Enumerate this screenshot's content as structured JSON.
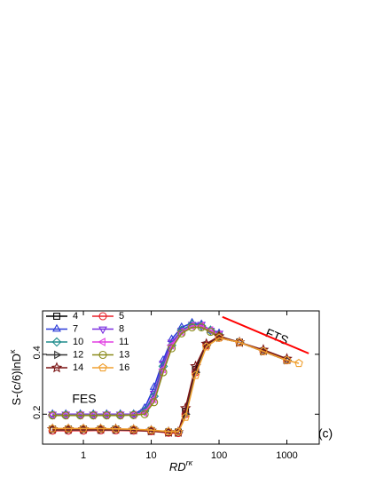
{
  "chart_data": {
    "type": "line",
    "xscale": "log",
    "xlim": [
      0.25,
      3000
    ],
    "ylim": [
      0.1,
      0.545
    ],
    "xticks": [
      1,
      10,
      100,
      1000
    ],
    "yticks": [
      0.2,
      0.4
    ],
    "xlabel": "RD",
    "xlabel_sup": "rκ",
    "ylabel": "S-(c/6)lnD",
    "ylabel_sup": "κ",
    "annotations": [
      "FES",
      "FTS",
      "(c)"
    ],
    "fts_line": {
      "color": "#ff0000",
      "x": [
        112,
        2100
      ],
      "values": [
        0.525,
        0.403
      ]
    },
    "legend": "top-left",
    "series": [
      {
        "name": "4",
        "color": "#000000",
        "marker": "square",
        "x": [
          0.35,
          0.6,
          1,
          1.8,
          3,
          5.5,
          10,
          18,
          25,
          32,
          45,
          65,
          100,
          200,
          450,
          1000
        ],
        "values": [
          0.15,
          0.15,
          0.15,
          0.15,
          0.15,
          0.148,
          0.145,
          0.14,
          0.14,
          0.21,
          0.35,
          0.43,
          0.46,
          0.44,
          0.41,
          0.38
        ]
      },
      {
        "name": "5",
        "color": "#e8202a",
        "marker": "circle",
        "x": [
          0.35,
          0.6,
          1,
          1.8,
          3,
          5.5,
          10,
          18,
          25,
          32,
          45,
          65,
          100,
          200,
          450,
          1000
        ],
        "values": [
          0.145,
          0.145,
          0.145,
          0.146,
          0.146,
          0.145,
          0.143,
          0.138,
          0.137,
          0.2,
          0.34,
          0.43,
          0.455,
          0.44,
          0.41,
          0.38
        ]
      },
      {
        "name": "7",
        "color": "#2a3ad8",
        "marker": "triangle-up",
        "x": [
          0.35,
          0.55,
          0.9,
          1.4,
          2.2,
          3.5,
          5.5,
          8,
          11,
          15,
          20,
          28,
          40,
          55,
          75,
          100
        ],
        "values": [
          0.2,
          0.2,
          0.2,
          0.2,
          0.2,
          0.2,
          0.2,
          0.22,
          0.29,
          0.38,
          0.45,
          0.49,
          0.505,
          0.5,
          0.48,
          0.47
        ]
      },
      {
        "name": "8",
        "color": "#7a2ee0",
        "marker": "triangle-down",
        "x": [
          0.35,
          0.55,
          0.9,
          1.4,
          2.2,
          3.5,
          5.5,
          8,
          11,
          15,
          20,
          28,
          40,
          55,
          75,
          100
        ],
        "values": [
          0.2,
          0.2,
          0.2,
          0.2,
          0.2,
          0.2,
          0.2,
          0.21,
          0.27,
          0.37,
          0.44,
          0.48,
          0.5,
          0.5,
          0.48,
          0.47
        ]
      },
      {
        "name": "10",
        "color": "#1f8c8c",
        "marker": "diamond",
        "x": [
          0.35,
          0.55,
          0.9,
          1.4,
          2.2,
          3.5,
          5.5,
          8,
          11,
          15,
          20,
          28,
          40,
          55,
          75,
          100
        ],
        "values": [
          0.198,
          0.198,
          0.198,
          0.198,
          0.198,
          0.198,
          0.199,
          0.21,
          0.26,
          0.36,
          0.43,
          0.48,
          0.5,
          0.495,
          0.48,
          0.465
        ]
      },
      {
        "name": "11",
        "color": "#e23ee2",
        "marker": "triangle-left",
        "x": [
          0.35,
          0.55,
          0.9,
          1.4,
          2.2,
          3.5,
          5.5,
          8,
          11,
          15,
          20,
          28,
          40,
          55,
          75,
          100
        ],
        "values": [
          0.197,
          0.197,
          0.197,
          0.197,
          0.197,
          0.197,
          0.198,
          0.205,
          0.25,
          0.35,
          0.43,
          0.475,
          0.495,
          0.495,
          0.48,
          0.465
        ]
      },
      {
        "name": "12",
        "color": "#333333",
        "marker": "triangle-right",
        "x": [
          0.35,
          0.6,
          1,
          1.8,
          3,
          5.5,
          10,
          18,
          25,
          32,
          45,
          65,
          100,
          200,
          450,
          1000
        ],
        "values": [
          0.148,
          0.148,
          0.148,
          0.148,
          0.148,
          0.147,
          0.144,
          0.14,
          0.139,
          0.2,
          0.34,
          0.43,
          0.455,
          0.44,
          0.41,
          0.38
        ]
      },
      {
        "name": "13",
        "color": "#8a8a1a",
        "marker": "circle",
        "x": [
          0.35,
          0.55,
          0.9,
          1.4,
          2.2,
          3.5,
          5.5,
          8,
          11,
          15,
          20,
          28,
          40,
          55,
          75,
          100
        ],
        "values": [
          0.196,
          0.196,
          0.196,
          0.196,
          0.196,
          0.196,
          0.197,
          0.2,
          0.24,
          0.34,
          0.42,
          0.47,
          0.49,
          0.49,
          0.475,
          0.46
        ]
      },
      {
        "name": "14",
        "color": "#7a1414",
        "marker": "star",
        "x": [
          0.35,
          0.6,
          1,
          1.8,
          3,
          5.5,
          10,
          18,
          25,
          32,
          45,
          65,
          100,
          200,
          450,
          1000
        ],
        "values": [
          0.15,
          0.15,
          0.15,
          0.15,
          0.15,
          0.148,
          0.145,
          0.14,
          0.14,
          0.22,
          0.36,
          0.435,
          0.46,
          0.44,
          0.415,
          0.385
        ]
      },
      {
        "name": "16",
        "color": "#f0a030",
        "marker": "pentagon",
        "x": [
          0.35,
          0.6,
          1,
          1.8,
          3,
          5.5,
          10,
          18,
          25,
          32,
          45,
          65,
          100,
          200,
          450,
          1000,
          1500
        ],
        "values": [
          0.152,
          0.152,
          0.152,
          0.152,
          0.151,
          0.15,
          0.147,
          0.142,
          0.141,
          0.19,
          0.33,
          0.425,
          0.455,
          0.44,
          0.41,
          0.38,
          0.37
        ]
      }
    ]
  }
}
